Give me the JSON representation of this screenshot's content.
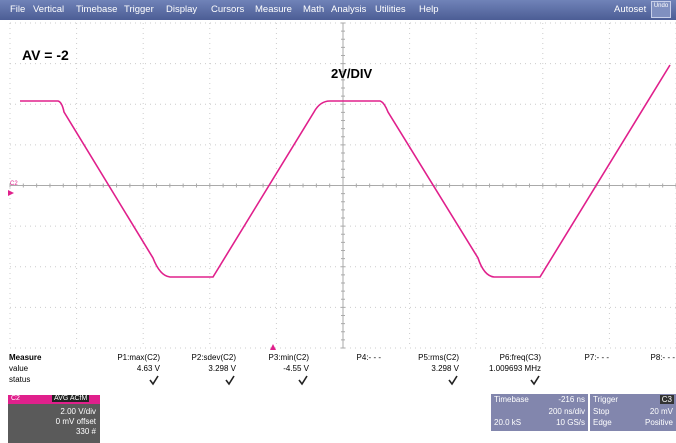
{
  "menu": {
    "items": [
      "File",
      "Vertical",
      "Timebase",
      "Trigger",
      "Display",
      "Cursors",
      "Measure",
      "Math",
      "Analysis",
      "Utilities",
      "Help"
    ],
    "autoset": "Autoset",
    "undo": "Undo"
  },
  "screen": {
    "annotation_gain": "AV = -2",
    "annotation_scale": "2V/DIV",
    "channel_marker": "C2"
  },
  "measure": {
    "title": "Measure",
    "row_labels": [
      "value",
      "status"
    ],
    "columns": [
      {
        "label": "P1:max(C2)",
        "value": "4.63 V",
        "status": true
      },
      {
        "label": "P2:sdev(C2)",
        "value": "3.298 V",
        "status": true
      },
      {
        "label": "P3:min(C2)",
        "value": "-4.55 V",
        "status": true
      },
      {
        "label": "P4:- - -",
        "status": false
      },
      {
        "label": "P5:rms(C2)",
        "value": "3.298 V",
        "status": true
      },
      {
        "label": "P6:freq(C3)",
        "value": "1.009693 MHz",
        "status": true
      },
      {
        "label": "P7:- - -",
        "status": false
      },
      {
        "label": "P8:- - -",
        "status": false
      }
    ]
  },
  "channel": {
    "name": "C2",
    "flags": "AVG ACfM",
    "lines": [
      "2.00 V/div",
      "0 mV offset",
      "330 #"
    ]
  },
  "timebase": {
    "title": "Timebase",
    "delay": "-216 ns",
    "scale": "200 ns/div",
    "samples": "20.0 kS",
    "rate": "10 GS/s"
  },
  "trigger": {
    "title": "Trigger",
    "source": "C3",
    "mode": "Stop",
    "level": "20 mV",
    "type": "Edge",
    "slope": "Positive"
  }
}
